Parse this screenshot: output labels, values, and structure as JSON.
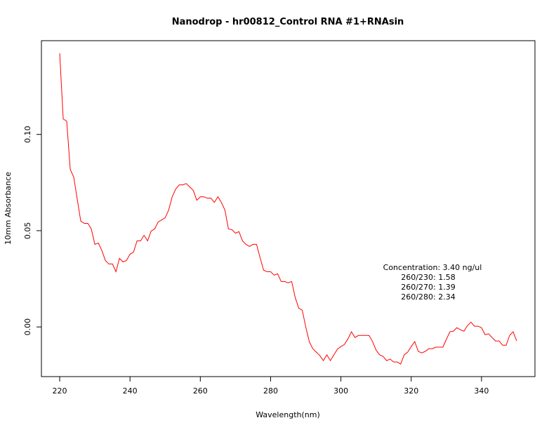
{
  "chart_data": {
    "type": "line",
    "title": "Nanodrop - hr00812_Control RNA #1+RNAsin",
    "xlabel": "Wavelength(nm)",
    "ylabel": "10mm Absorbance",
    "xlim": [
      214.8,
      355.2
    ],
    "ylim": [
      -0.0258,
      0.1487
    ],
    "xticks": [
      220,
      240,
      260,
      280,
      300,
      320,
      340
    ],
    "xtick_labels": [
      "220",
      "240",
      "260",
      "280",
      "300",
      "320",
      "340"
    ],
    "yticks": [
      0,
      0.05,
      0.1
    ],
    "ytick_labels": [
      "0.00",
      "0.05",
      "0.10"
    ],
    "grid": false,
    "line_color": "#ff0000",
    "annotation": [
      "Concentration: 3.40 ng/ul",
      "260/230: 1.58",
      "260/270: 1.39",
      "260/280: 2.34"
    ],
    "x_start": 220,
    "x_step": 1,
    "values": [
      0.1422,
      0.108,
      0.1069,
      0.0818,
      0.0778,
      0.0662,
      0.0549,
      0.0538,
      0.0538,
      0.0509,
      0.0429,
      0.0436,
      0.0396,
      0.0345,
      0.0327,
      0.0327,
      0.0287,
      0.0356,
      0.0338,
      0.0345,
      0.0378,
      0.0389,
      0.0447,
      0.0447,
      0.0476,
      0.0447,
      0.0498,
      0.0509,
      0.0545,
      0.0556,
      0.0567,
      0.0607,
      0.0676,
      0.0716,
      0.0738,
      0.0738,
      0.0745,
      0.0727,
      0.0709,
      0.0658,
      0.0676,
      0.0676,
      0.0669,
      0.0669,
      0.0647,
      0.0676,
      0.0647,
      0.0607,
      0.0509,
      0.0505,
      0.0487,
      0.0495,
      0.0447,
      0.0429,
      0.0418,
      0.0429,
      0.0429,
      0.036,
      0.0295,
      0.0287,
      0.0287,
      0.0269,
      0.0276,
      0.0236,
      0.0236,
      0.0229,
      0.0236,
      0.0153,
      0.0098,
      0.0087,
      0.0,
      -0.0076,
      -0.0113,
      -0.0131,
      -0.0149,
      -0.0175,
      -0.0145,
      -0.0175,
      -0.0145,
      -0.0116,
      -0.0102,
      -0.0091,
      -0.0062,
      -0.0025,
      -0.0055,
      -0.0044,
      -0.0044,
      -0.0044,
      -0.0044,
      -0.0076,
      -0.012,
      -0.0145,
      -0.0153,
      -0.0175,
      -0.0167,
      -0.0182,
      -0.0182,
      -0.0193,
      -0.0145,
      -0.0131,
      -0.0102,
      -0.0076,
      -0.0127,
      -0.0135,
      -0.0127,
      -0.0113,
      -0.0113,
      -0.0105,
      -0.0105,
      -0.0105,
      -0.0065,
      -0.0025,
      -0.0022,
      -0.0004,
      -0.0015,
      -0.0022,
      0.0007,
      0.0025,
      0.0004,
      0.0004,
      -0.0004,
      -0.004,
      -0.0036,
      -0.0055,
      -0.0073,
      -0.0073,
      -0.0095,
      -0.0095,
      -0.0044,
      -0.0025,
      -0.0073
    ]
  }
}
